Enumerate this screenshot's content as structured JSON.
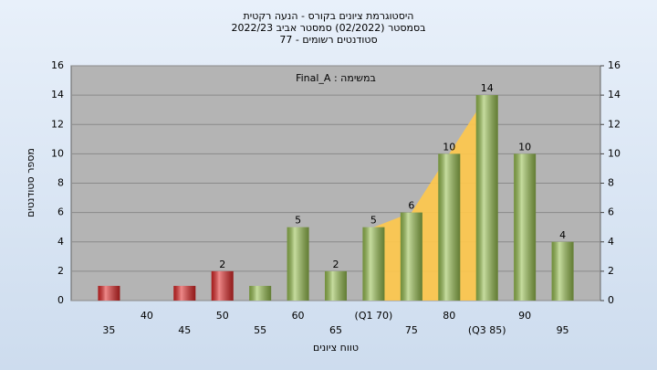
{
  "chart_data": {
    "type": "bar",
    "title": [
      "היסטוגרמת ציונים בקורס - הנעה רקטית",
      "בסמסטר  (02/2022)  סמסטר אביב 2022/23",
      "סטודנטים רשומים - 77"
    ],
    "annotation": "במשימה : Final_A",
    "x_label": "טווח ציונים",
    "y_label": "מספר סטודנטים",
    "categories": [
      "35",
      "40",
      "45",
      "50",
      "55",
      "60",
      "65",
      "(Q1 70)",
      "75",
      "80",
      "(Q3 85)",
      "90",
      "95"
    ],
    "values": [
      1,
      0,
      1,
      2,
      1,
      5,
      2,
      5,
      6,
      10,
      14,
      10,
      4
    ],
    "value_labels": [
      null,
      null,
      null,
      "2",
      null,
      "5",
      "2",
      "5",
      "6",
      "10",
      "14",
      "10",
      "4"
    ],
    "colors": [
      "#e02828",
      "#e02828",
      "#e02828",
      "#e02828",
      "#98c050",
      "#98c050",
      "#98c050",
      "#98c050",
      "#98c050",
      "#98c050",
      "#98c050",
      "#98c050",
      "#98c050"
    ],
    "quartile_area_color": "#ffc84a",
    "ylim": [
      0,
      16
    ],
    "yticks": [
      0,
      2,
      4,
      6,
      8,
      10,
      12,
      14,
      16
    ],
    "y2lim": [
      0,
      16
    ],
    "y2ticks": [
      0,
      2,
      4,
      6,
      8,
      10,
      12,
      14,
      16
    ],
    "grid": true
  }
}
